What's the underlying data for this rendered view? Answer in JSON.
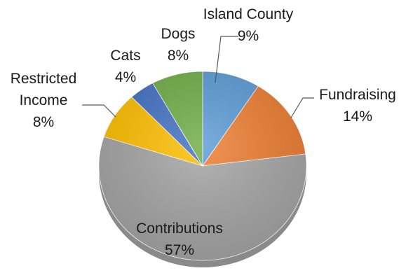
{
  "chart_data": {
    "type": "pie",
    "title": "",
    "slices": [
      {
        "label": "Island County",
        "value": 9,
        "display": "9%",
        "color": "#5b9bd5"
      },
      {
        "label": "Fundraising",
        "value": 14,
        "display": "14%",
        "color": "#ed7d31"
      },
      {
        "label": "Contributions",
        "value": 57,
        "display": "57%",
        "color": "#a5a5a5"
      },
      {
        "label": "Restricted Income",
        "value": 8,
        "display": "8%",
        "color": "#ffc000"
      },
      {
        "label": "Cats",
        "value": 4,
        "display": "4%",
        "color": "#4472c4"
      },
      {
        "label": "Dogs",
        "value": 8,
        "display": "8%",
        "color": "#70ad47"
      }
    ],
    "legend": "none",
    "labels": "outside with leader lines"
  }
}
